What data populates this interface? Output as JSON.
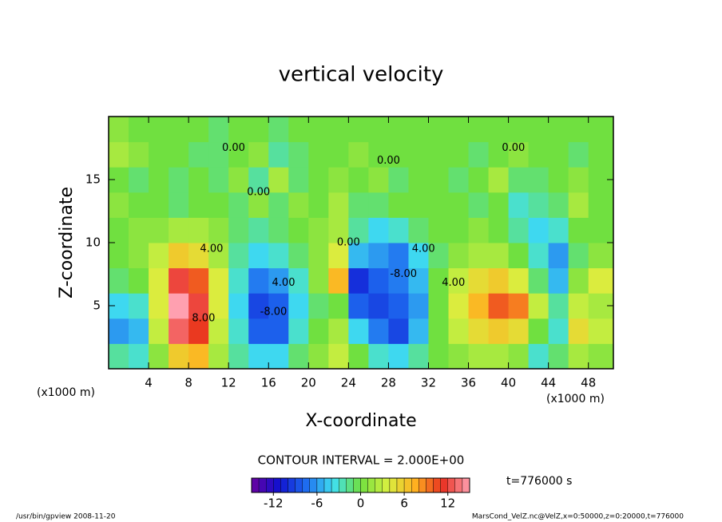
{
  "chart_data": {
    "type": "heatmap",
    "title": "vertical velocity",
    "xlabel": "X-coordinate",
    "ylabel": "Z-coordinate",
    "xunit": "(x1000 m)",
    "yunit": "(x1000 m)",
    "contour_interval": "CONTOUR INTERVAL = 2.000E+00",
    "time_label": "t=776000 s",
    "footer_left": "/usr/bin/gpview  2008-11-20",
    "footer_right": "MarsCond_VelZ.nc@VelZ,x=0:50000,z=0:20000,t=776000",
    "xlim": [
      0,
      50.5
    ],
    "ylim": [
      0,
      20
    ],
    "xticks": [
      4,
      8,
      12,
      16,
      20,
      24,
      28,
      32,
      36,
      40,
      44,
      48
    ],
    "yticks": [
      5,
      10,
      15
    ],
    "x": [
      1,
      3,
      5,
      7,
      9,
      11,
      13,
      15,
      17,
      19,
      21,
      23,
      25,
      27,
      29,
      31,
      33,
      35,
      37,
      39,
      41,
      43,
      45,
      47,
      49
    ],
    "y": [
      1,
      3,
      5,
      7,
      9,
      11,
      13,
      15,
      17,
      19
    ],
    "z": [
      [
        -2,
        -3,
        1,
        6,
        7,
        2,
        -2,
        -4,
        -4,
        -1,
        1,
        3,
        0,
        -3,
        -4,
        -2,
        0,
        1,
        2,
        2,
        1,
        -3,
        -1,
        2,
        1
      ],
      [
        -6,
        -5,
        3,
        13,
        11,
        3,
        -3,
        -8,
        -8,
        -3,
        0,
        2,
        -4,
        -7,
        -9,
        -5,
        0,
        3,
        5,
        6,
        5,
        0,
        -3,
        5,
        3
      ],
      [
        -4,
        -3,
        4,
        15,
        12,
        4,
        -4,
        -9,
        -8,
        -4,
        -1,
        0,
        -8,
        -9,
        -8,
        -6,
        0,
        4,
        7,
        10,
        9,
        3,
        -2,
        3,
        2
      ],
      [
        -1,
        0,
        4,
        12,
        10,
        4,
        -3,
        -7,
        -6,
        -3,
        1,
        7,
        -10,
        -8,
        -7,
        -5,
        0,
        3,
        5,
        6,
        4,
        -1,
        -5,
        1,
        4
      ],
      [
        0,
        1,
        3,
        6,
        5,
        2,
        -2,
        -4,
        -3,
        -1,
        1,
        4,
        -5,
        -6,
        -7,
        -4,
        -1,
        1,
        2,
        2,
        0,
        -3,
        -6,
        -1,
        1
      ],
      [
        0,
        1,
        1,
        2,
        2,
        1,
        -1,
        -2,
        -1,
        0,
        1,
        2,
        -2,
        -4,
        -3,
        -1,
        0,
        0,
        1,
        0,
        -2,
        -4,
        -3,
        0,
        0
      ],
      [
        1,
        0,
        0,
        -1,
        0,
        0,
        -1,
        1,
        -1,
        1,
        0,
        2,
        -1,
        -1,
        0,
        0,
        0,
        0,
        -1,
        0,
        -3,
        -2,
        -1,
        2,
        0
      ],
      [
        0,
        -1,
        0,
        -1,
        0,
        -1,
        1,
        -2,
        2,
        -1,
        0,
        1,
        0,
        1,
        -1,
        0,
        0,
        -1,
        0,
        2,
        -1,
        -1,
        0,
        1,
        0
      ],
      [
        2,
        1,
        0,
        0,
        -1,
        -1,
        0,
        1,
        -2,
        -1,
        0,
        0,
        1,
        0,
        0,
        0,
        0,
        0,
        -1,
        0,
        1,
        0,
        0,
        -1,
        0
      ],
      [
        1,
        0,
        0,
        0,
        0,
        -1,
        0,
        0,
        -1,
        0,
        0,
        0,
        0,
        0,
        0,
        0,
        0,
        0,
        0,
        0,
        0,
        0,
        0,
        0,
        0
      ]
    ],
    "clim": [
      -15,
      15
    ],
    "cbticks": [
      -12,
      -6,
      0,
      6,
      12
    ],
    "colormap": [
      "#6a00a0",
      "#1010d0",
      "#1e6cf0",
      "#40e0f0",
      "#70e040",
      "#d8f040",
      "#ffb020",
      "#e83020",
      "#ffa0b0"
    ],
    "annotations": [
      {
        "text": "0.00",
        "x": 12.5,
        "y": 17.5
      },
      {
        "text": "0.00",
        "x": 15,
        "y": 14
      },
      {
        "text": "4.00",
        "x": 10.3,
        "y": 9.5
      },
      {
        "text": "8.00",
        "x": 9.5,
        "y": 4
      },
      {
        "text": "-8.00",
        "x": 16.5,
        "y": 4.5
      },
      {
        "text": "4.00",
        "x": 17.5,
        "y": 6.8
      },
      {
        "text": "0.00",
        "x": 24,
        "y": 10
      },
      {
        "text": "-8.00",
        "x": 29.5,
        "y": 7.5
      },
      {
        "text": "4.00",
        "x": 31.5,
        "y": 9.5
      },
      {
        "text": "4.00",
        "x": 34.5,
        "y": 6.8
      },
      {
        "text": "0.00",
        "x": 28,
        "y": 16.5
      },
      {
        "text": "0.00",
        "x": 40.5,
        "y": 17.5
      }
    ]
  }
}
